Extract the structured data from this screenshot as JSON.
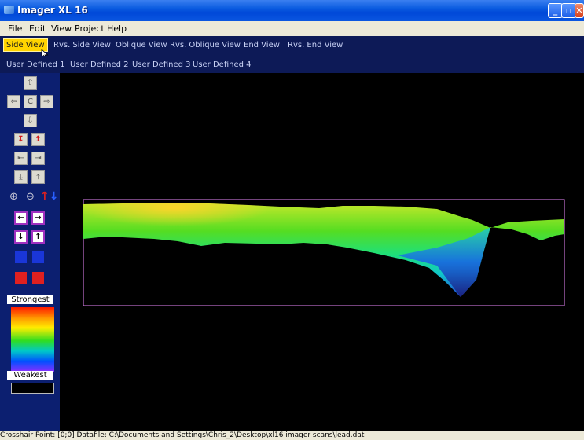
{
  "window": {
    "title": "Imager XL 16"
  },
  "menu": [
    "File",
    "Edit",
    "View",
    "Project",
    "Help"
  ],
  "view_tabs": [
    "Side View",
    "Rvs. Side View",
    "Oblique View",
    "Rvs. Oblique View",
    "End View",
    "Rvs. End View"
  ],
  "active_view": "Side View",
  "user_tabs": [
    "User Defined 1",
    "User Defined 2",
    "User Defined 3",
    "User Defined 4"
  ],
  "legend": {
    "top": "Strongest",
    "bottom": "Weakest"
  },
  "status": "Crosshair Point: [0;0]  Datafile: C:\\Documents and Settings\\Chris_2\\Desktop\\xl16 imager scans\\lead.dat",
  "colors": {
    "plot_frame": "#c070d0",
    "active_tab": "#ffd400",
    "panel": "#0c1f70"
  }
}
